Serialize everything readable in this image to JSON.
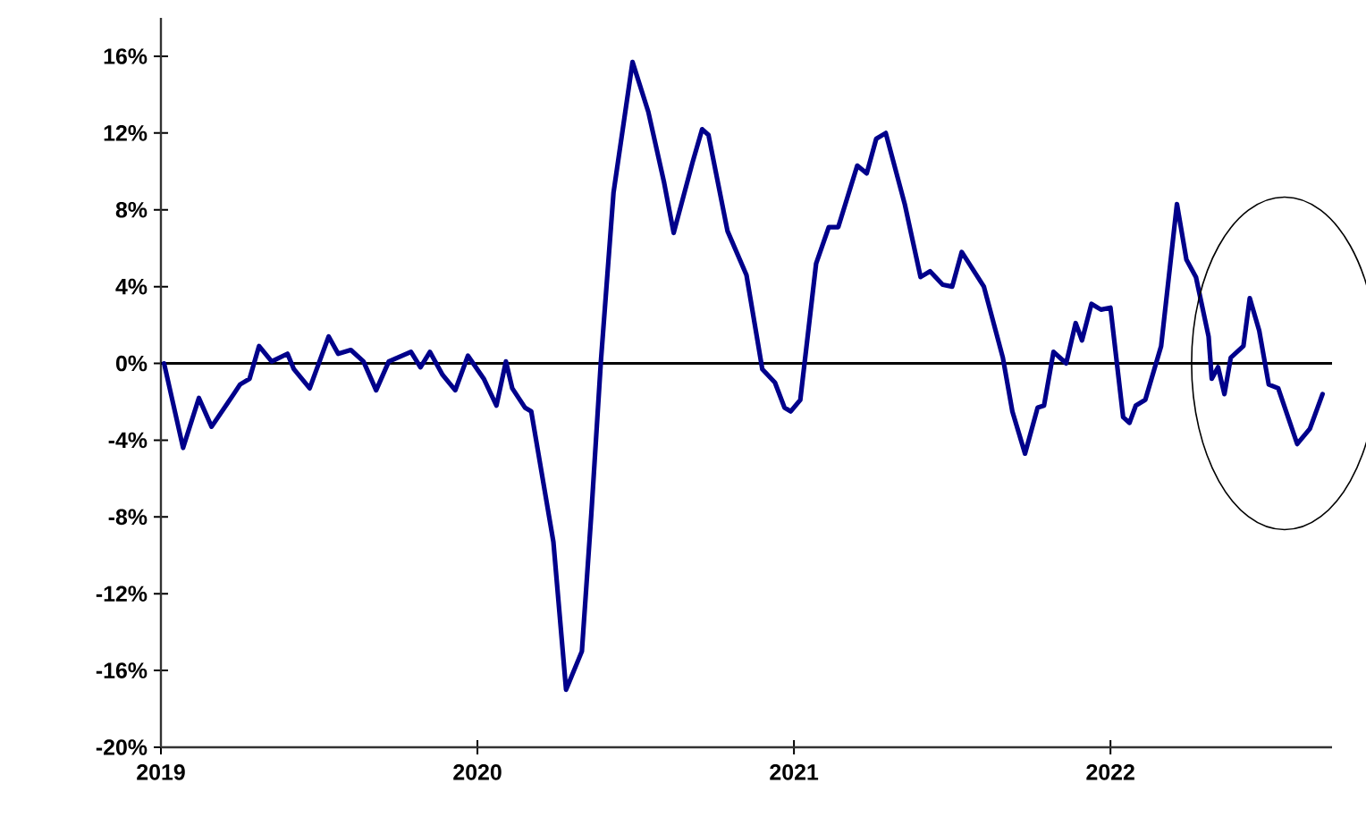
{
  "chart_data": {
    "type": "line",
    "x": [
      2019.01,
      2019.07,
      2019.12,
      2019.16,
      2019.23,
      2019.25,
      2019.28,
      2019.31,
      2019.35,
      2019.4,
      2019.42,
      2019.47,
      2019.53,
      2019.56,
      2019.6,
      2019.64,
      2019.68,
      2019.72,
      2019.79,
      2019.82,
      2019.85,
      2019.89,
      2019.93,
      2019.97,
      2020.02,
      2020.06,
      2020.09,
      2020.11,
      2020.15,
      2020.17,
      2020.24,
      2020.28,
      2020.33,
      2020.36,
      2020.39,
      2020.43,
      2020.49,
      2020.54,
      2020.59,
      2020.62,
      2020.68,
      2020.71,
      2020.73,
      2020.79,
      2020.85,
      2020.9,
      2020.94,
      2020.97,
      2020.99,
      2021.02,
      2021.07,
      2021.11,
      2021.14,
      2021.2,
      2021.23,
      2021.26,
      2021.29,
      2021.35,
      2021.4,
      2021.43,
      2021.47,
      2021.5,
      2021.53,
      2021.6,
      2021.66,
      2021.69,
      2021.73,
      2021.77,
      2021.79,
      2021.82,
      2021.86,
      2021.89,
      2021.91,
      2021.94,
      2021.97,
      2022.0,
      2022.04,
      2022.06,
      2022.08,
      2022.11,
      2022.16,
      2022.21,
      2022.24,
      2022.27,
      2022.31,
      2022.32,
      2022.34,
      2022.36,
      2022.38,
      2022.42,
      2022.44,
      2022.47,
      2022.5,
      2022.53,
      2022.59,
      2022.62,
      2022.63,
      2022.67
    ],
    "series": [
      {
        "color": "#00008b",
        "values": [
          0,
          -4.4,
          -1.8,
          -3.3,
          -1.6,
          -1.1,
          -0.8,
          0.9,
          0.1,
          0.5,
          -0.3,
          -1.3,
          1.4,
          0.5,
          0.7,
          0.1,
          -1.4,
          0.1,
          0.6,
          -0.2,
          0.6,
          -0.6,
          -1.4,
          0.4,
          -0.8,
          -2.2,
          0.1,
          -1.3,
          -2.3,
          -2.5,
          -9.3,
          -17.0,
          -15.0,
          -7.8,
          0.1,
          8.9,
          15.7,
          13.1,
          9.4,
          6.8,
          10.5,
          12.2,
          11.9,
          6.9,
          4.6,
          -0.3,
          -1.0,
          -2.3,
          -2.5,
          -1.9,
          5.2,
          7.1,
          7.1,
          10.3,
          9.9,
          11.7,
          12.0,
          8.3,
          4.5,
          4.8,
          4.1,
          4.0,
          5.8,
          4.0,
          0.3,
          -2.5,
          -4.7,
          -2.3,
          -2.2,
          0.6,
          0,
          2.1,
          1.2,
          3.1,
          2.8,
          2.9,
          -2.8,
          -3.1,
          -2.2,
          -1.9,
          0.9,
          8.3,
          5.4,
          4.5,
          1.4,
          -0.8,
          -0.2,
          -1.6,
          0.3,
          0.9,
          3.4,
          1.7,
          -1.1,
          -1.3,
          -4.2,
          -3.6,
          -3.4,
          -1.6
        ]
      }
    ],
    "xlim": [
      2019,
      2022.7
    ],
    "ylim": [
      -20,
      18
    ],
    "xticks": [
      2019,
      2020,
      2021,
      2022
    ],
    "yticks": [
      {
        "value": -20,
        "label": "-20%"
      },
      {
        "value": -16,
        "label": "-16%"
      },
      {
        "value": -12,
        "label": "-12%"
      },
      {
        "value": -8,
        "label": "-8%"
      },
      {
        "value": -4,
        "label": "-4%"
      },
      {
        "value": 0,
        "label": "0%"
      },
      {
        "value": 4,
        "label": "4%"
      },
      {
        "value": 8,
        "label": "8%"
      },
      {
        "value": 12,
        "label": "12%"
      },
      {
        "value": 16,
        "label": "16%"
      }
    ],
    "ref_lines": [
      {
        "axis": "y",
        "value": 0,
        "color": "#000000"
      }
    ],
    "grid": false,
    "legend": false,
    "marker": "none",
    "line_style": "solid"
  }
}
